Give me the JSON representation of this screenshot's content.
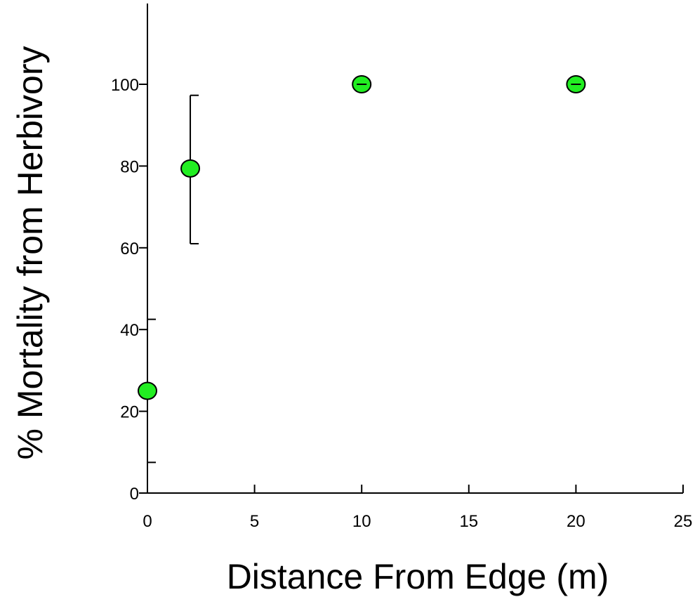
{
  "chart_data": {
    "type": "scatter",
    "title": "",
    "xlabel": "Distance From Edge (m)",
    "ylabel": "% Mortality from Herbivory",
    "xlim": [
      0,
      25
    ],
    "ylim": [
      0,
      120
    ],
    "xticks": [
      0,
      5,
      10,
      15,
      20,
      25
    ],
    "yticks": [
      0,
      20,
      40,
      60,
      80,
      100
    ],
    "grid": false,
    "legend": "none",
    "marker_color": "#22ee22",
    "series": [
      {
        "points": [
          {
            "x": 0,
            "y": 25,
            "err_low": 7.5,
            "err_high": 42.5
          },
          {
            "x": 2,
            "y": 79.4,
            "err_low": 61,
            "err_high": 97.3
          },
          {
            "x": 10,
            "y": 100,
            "err_low": 100,
            "err_high": 100
          },
          {
            "x": 20,
            "y": 100,
            "err_low": 100,
            "err_high": 100
          }
        ]
      }
    ]
  }
}
